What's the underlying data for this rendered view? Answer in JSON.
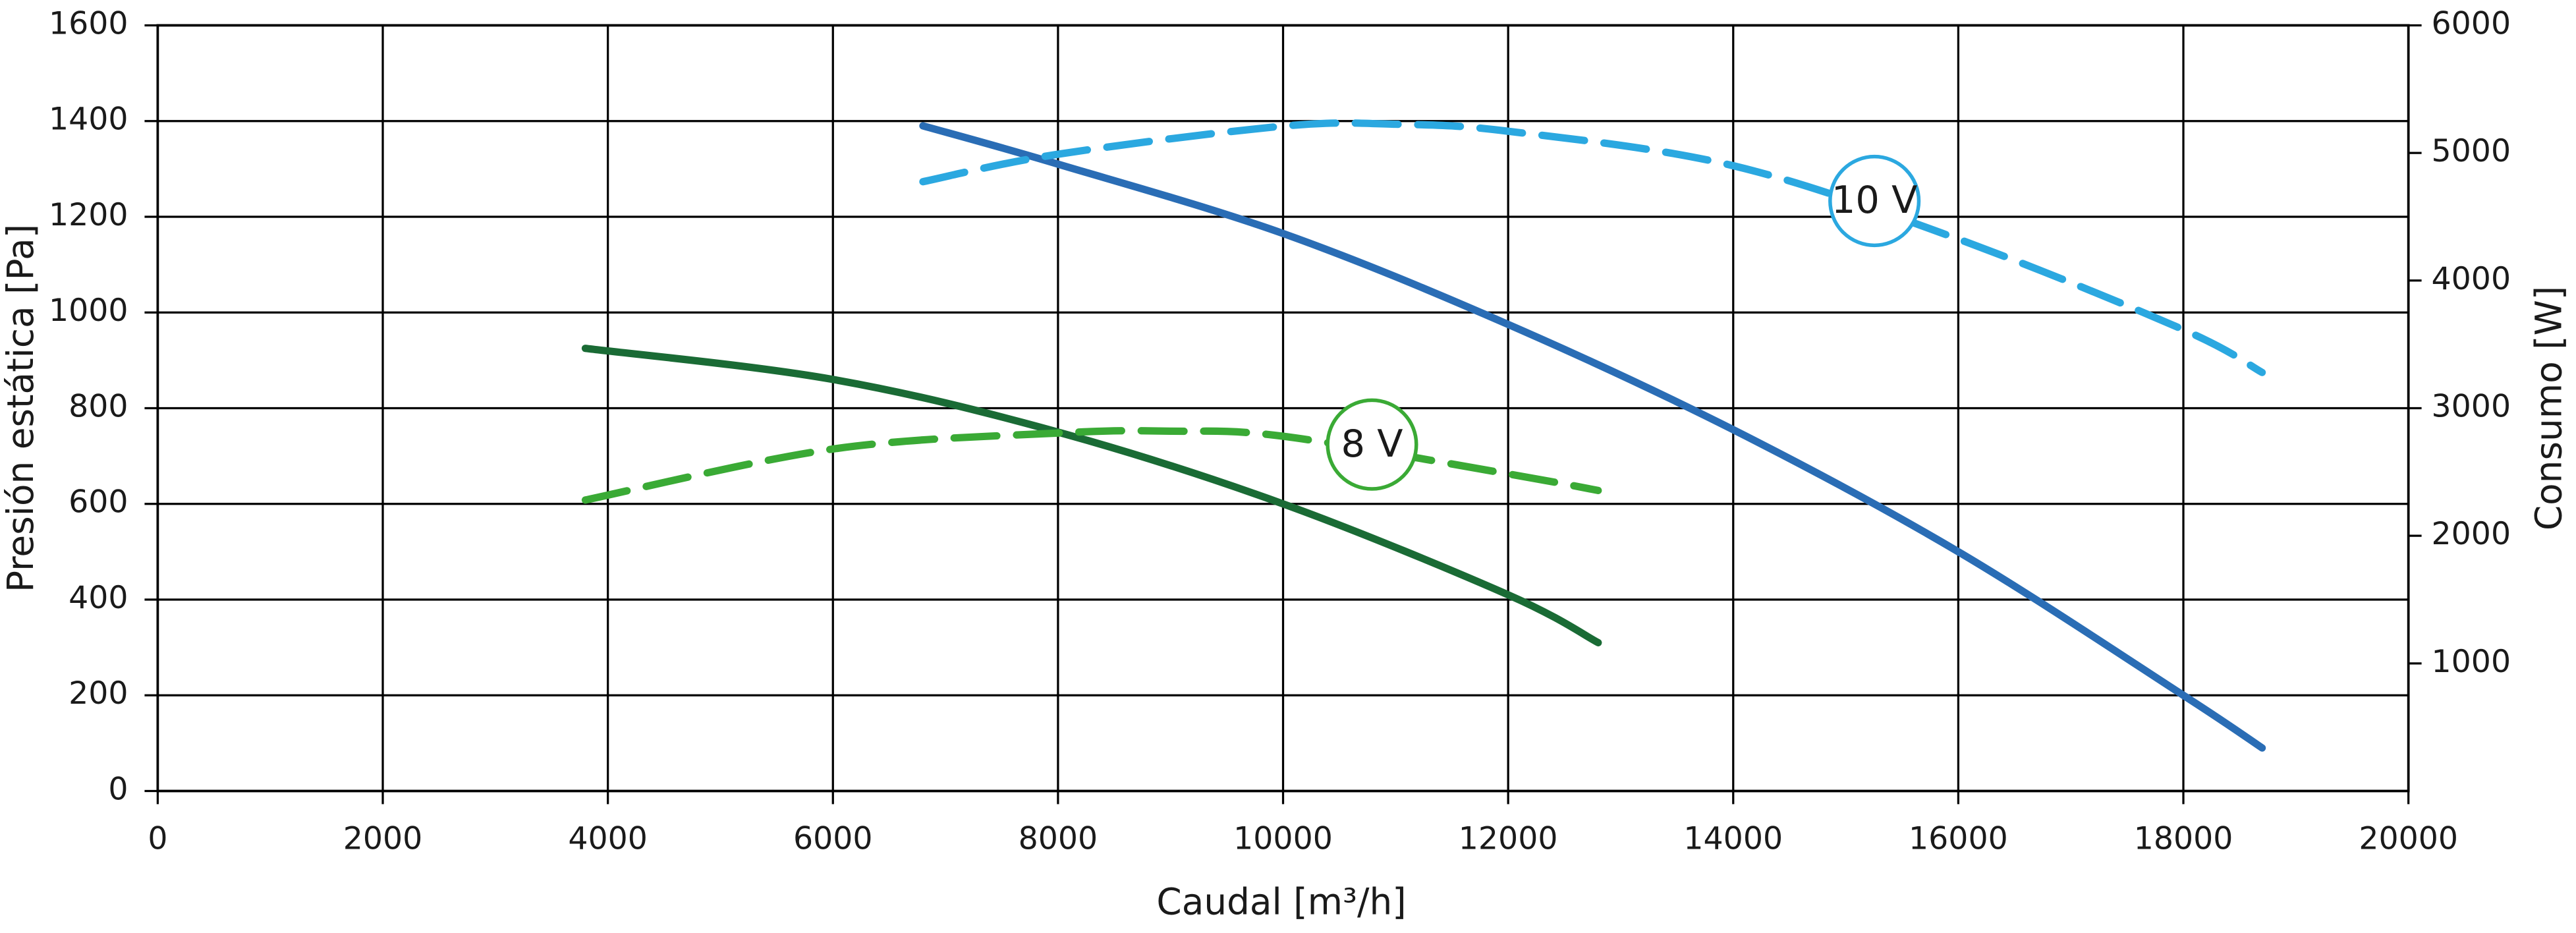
{
  "chart_data": {
    "type": "line",
    "xlabel": "Caudal [m³/h]",
    "ylabel": "Presión estática [Pa]",
    "y2label": "Consumo [W]",
    "xlim": [
      0,
      20000
    ],
    "xticks": [
      0,
      2000,
      4000,
      6000,
      8000,
      10000,
      12000,
      14000,
      16000,
      18000,
      20000
    ],
    "ylim": [
      0,
      1600
    ],
    "yticks": [
      0,
      200,
      400,
      600,
      800,
      1000,
      1200,
      1400,
      1600
    ],
    "y2lim": [
      0,
      6000
    ],
    "y2ticks": [
      1000,
      2000,
      3000,
      4000,
      5000,
      6000
    ],
    "grid": true,
    "series": [
      {
        "color": "#2a6db5",
        "dashed": false,
        "x": [
          6800,
          8000,
          10000,
          12000,
          14000,
          16000,
          18000,
          18700
        ],
        "values": [
          1390,
          1310,
          1165,
          975,
          755,
          500,
          200,
          90
        ]
      },
      {
        "color": "#2ba8e0",
        "dashed": true,
        "axis": "y2",
        "x": [
          6800,
          8000,
          10000,
          11000,
          12000,
          14000,
          16000,
          18000,
          18700
        ],
        "values": [
          4775,
          4990,
          5210,
          5225,
          5170,
          4900,
          4325,
          3615,
          3280
        ]
      },
      {
        "color": "#1a6b35",
        "dashed": false,
        "x": [
          3800,
          6000,
          8000,
          10000,
          12000,
          12800
        ],
        "values": [
          925,
          860,
          750,
          600,
          410,
          310
        ]
      },
      {
        "color": "#3aaa35",
        "dashed": true,
        "axis": "y2",
        "x": [
          3800,
          6000,
          8000,
          9000,
          10000,
          12000,
          12800
        ],
        "values": [
          2280,
          2680,
          2805,
          2820,
          2780,
          2485,
          2355
        ]
      }
    ],
    "annotations": [
      {
        "text": "10 V",
        "x": 15255,
        "y": 1233,
        "color": "#2ba8e0"
      },
      {
        "text": "8 V",
        "x": 10790,
        "y": 724,
        "color": "#3aaa35"
      }
    ]
  }
}
